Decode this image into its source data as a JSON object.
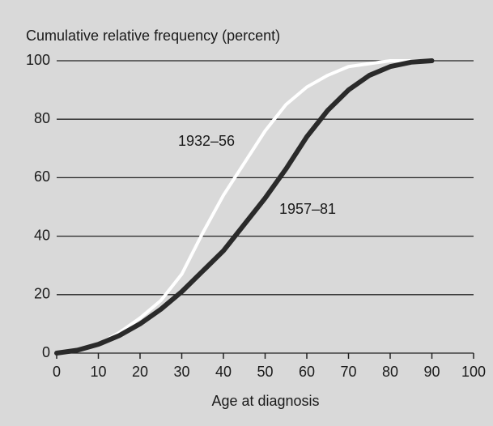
{
  "chart_data": {
    "type": "line",
    "y_label": "Cumulative relative frequency (percent)",
    "x_label": "Age at diagnosis",
    "x": [
      0,
      5,
      10,
      15,
      20,
      25,
      30,
      35,
      40,
      45,
      50,
      55,
      60,
      65,
      70,
      75,
      80,
      85,
      90
    ],
    "series": [
      {
        "name": "1932–56",
        "color": "#ffffff",
        "values": [
          0,
          1,
          3,
          7,
          12,
          18,
          27,
          41,
          54,
          65,
          76,
          85,
          91,
          95,
          98,
          99,
          100,
          100,
          100
        ]
      },
      {
        "name": "1957–81",
        "color": "#2a2a2a",
        "values": [
          0,
          1,
          3,
          6,
          10,
          15,
          21,
          28,
          35,
          44,
          53,
          63,
          74,
          83,
          90,
          95,
          98,
          99.5,
          100
        ]
      }
    ],
    "xlim": [
      0,
      100
    ],
    "xticks": [
      0,
      10,
      20,
      30,
      40,
      50,
      60,
      70,
      80,
      90,
      100
    ],
    "ylim": [
      0,
      100
    ],
    "yticks": [
      0,
      20,
      40,
      60,
      80,
      100
    ],
    "grid": true
  }
}
